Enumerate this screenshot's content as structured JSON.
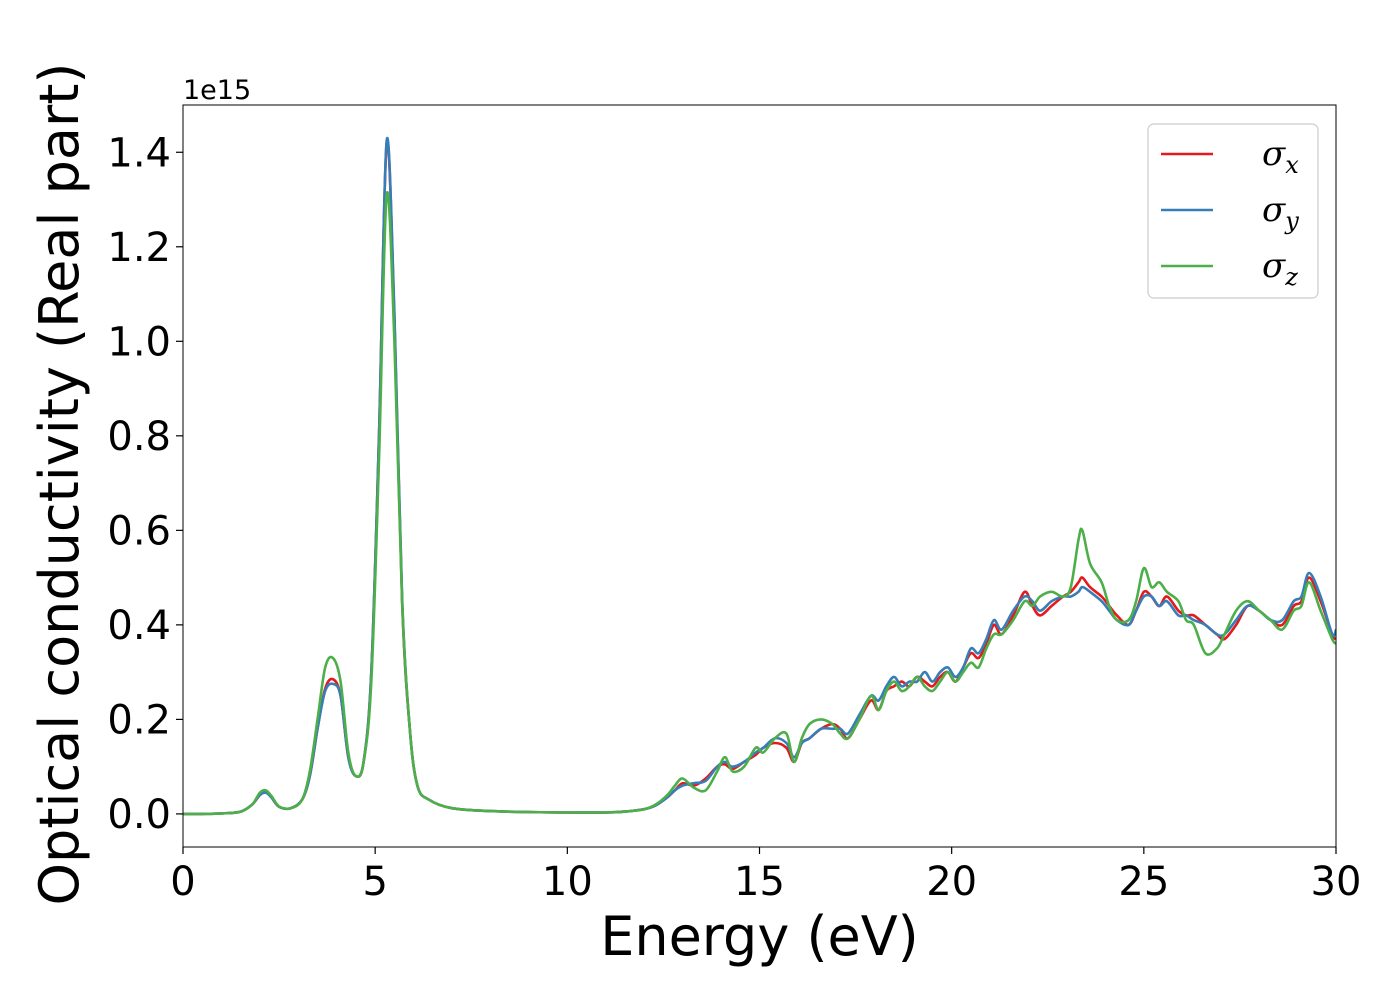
{
  "chart_data": {
    "type": "line",
    "xlabel": "Energy (eV)",
    "ylabel": "Optical conductivity (Real part)",
    "y_offset_label": "1e15",
    "y_scale": 1000000000000000.0,
    "xlim": [
      0,
      30
    ],
    "ylim": [
      -0.07,
      1.5
    ],
    "xticks": [
      0,
      5,
      10,
      15,
      20,
      25,
      30
    ],
    "xtick_labels": [
      "0",
      "5",
      "10",
      "15",
      "20",
      "25",
      "30"
    ],
    "yticks": [
      0.0,
      0.2,
      0.4,
      0.6,
      0.8,
      1.0,
      1.2,
      1.4
    ],
    "ytick_labels": [
      "0.0",
      "0.2",
      "0.4",
      "0.6",
      "0.8",
      "1.0",
      "1.2",
      "1.4"
    ],
    "grid": false,
    "legend_position": "top-right",
    "x": [
      0,
      0.5,
      1,
      1.5,
      1.8,
      2.0,
      2.15,
      2.3,
      2.5,
      2.8,
      3.1,
      3.3,
      3.5,
      3.7,
      3.9,
      4.1,
      4.3,
      4.5,
      4.7,
      4.9,
      5.1,
      5.3,
      5.5,
      5.7,
      5.9,
      6.1,
      6.4,
      7,
      8,
      9,
      10,
      11,
      11.5,
      12,
      12.3,
      12.6,
      12.8,
      13.0,
      13.3,
      13.6,
      13.9,
      14.1,
      14.3,
      14.6,
      14.9,
      15.1,
      15.4,
      15.7,
      15.9,
      16.1,
      16.3,
      16.6,
      16.9,
      17.1,
      17.3,
      17.6,
      17.9,
      18.1,
      18.3,
      18.5,
      18.7,
      18.9,
      19.1,
      19.3,
      19.5,
      19.7,
      19.9,
      20.1,
      20.3,
      20.5,
      20.7,
      20.9,
      21.1,
      21.3,
      21.6,
      21.9,
      22.1,
      22.3,
      22.6,
      22.9,
      23.1,
      23.3,
      23.4,
      23.6,
      23.9,
      24.1,
      24.3,
      24.6,
      24.8,
      25.0,
      25.2,
      25.4,
      25.6,
      25.9,
      26.1,
      26.3,
      26.6,
      26.9,
      27.1,
      27.4,
      27.7,
      28.0,
      28.3,
      28.6,
      28.9,
      29.1,
      29.3,
      29.6,
      29.9,
      30.0
    ],
    "series": [
      {
        "name": "σx",
        "label_main": "σ",
        "label_sub": "x",
        "color": "#e41a1c",
        "values": [
          0,
          0,
          0.001,
          0.005,
          0.02,
          0.04,
          0.046,
          0.035,
          0.015,
          0.012,
          0.03,
          0.08,
          0.18,
          0.265,
          0.285,
          0.25,
          0.12,
          0.08,
          0.11,
          0.3,
          0.8,
          1.42,
          1.05,
          0.45,
          0.18,
          0.06,
          0.03,
          0.012,
          0.006,
          0.004,
          0.003,
          0.003,
          0.005,
          0.01,
          0.018,
          0.035,
          0.05,
          0.065,
          0.06,
          0.075,
          0.1,
          0.105,
          0.095,
          0.11,
          0.125,
          0.14,
          0.15,
          0.14,
          0.11,
          0.15,
          0.16,
          0.18,
          0.19,
          0.18,
          0.16,
          0.2,
          0.24,
          0.22,
          0.26,
          0.27,
          0.28,
          0.27,
          0.29,
          0.28,
          0.27,
          0.29,
          0.3,
          0.28,
          0.31,
          0.34,
          0.33,
          0.36,
          0.4,
          0.38,
          0.42,
          0.47,
          0.44,
          0.42,
          0.44,
          0.46,
          0.47,
          0.49,
          0.5,
          0.48,
          0.46,
          0.44,
          0.42,
          0.4,
          0.43,
          0.47,
          0.46,
          0.44,
          0.46,
          0.43,
          0.42,
          0.42,
          0.4,
          0.38,
          0.37,
          0.4,
          0.44,
          0.43,
          0.41,
          0.4,
          0.44,
          0.45,
          0.5,
          0.45,
          0.38,
          0.37
        ]
      },
      {
        "name": "σy",
        "label_main": "σ",
        "label_sub": "y",
        "color": "#377eb8",
        "values": [
          0,
          0,
          0.001,
          0.005,
          0.02,
          0.04,
          0.045,
          0.035,
          0.015,
          0.012,
          0.03,
          0.08,
          0.18,
          0.26,
          0.275,
          0.25,
          0.12,
          0.08,
          0.11,
          0.3,
          0.8,
          1.425,
          1.06,
          0.46,
          0.18,
          0.06,
          0.03,
          0.012,
          0.006,
          0.004,
          0.003,
          0.003,
          0.005,
          0.01,
          0.018,
          0.035,
          0.05,
          0.06,
          0.065,
          0.07,
          0.1,
          0.11,
          0.1,
          0.11,
          0.13,
          0.14,
          0.16,
          0.15,
          0.12,
          0.15,
          0.16,
          0.18,
          0.18,
          0.18,
          0.17,
          0.21,
          0.25,
          0.24,
          0.27,
          0.29,
          0.27,
          0.28,
          0.28,
          0.3,
          0.28,
          0.3,
          0.31,
          0.29,
          0.31,
          0.35,
          0.34,
          0.37,
          0.41,
          0.39,
          0.43,
          0.46,
          0.45,
          0.43,
          0.45,
          0.46,
          0.46,
          0.47,
          0.48,
          0.47,
          0.45,
          0.43,
          0.41,
          0.4,
          0.43,
          0.46,
          0.46,
          0.44,
          0.45,
          0.42,
          0.42,
          0.41,
          0.4,
          0.38,
          0.38,
          0.41,
          0.44,
          0.43,
          0.41,
          0.41,
          0.45,
          0.46,
          0.51,
          0.46,
          0.38,
          0.39
        ]
      },
      {
        "name": "σz",
        "label_main": "σ",
        "label_sub": "z",
        "color": "#4daf4a",
        "values": [
          0,
          0,
          0.001,
          0.005,
          0.02,
          0.045,
          0.05,
          0.038,
          0.016,
          0.012,
          0.03,
          0.09,
          0.2,
          0.31,
          0.33,
          0.28,
          0.13,
          0.08,
          0.11,
          0.28,
          0.75,
          1.31,
          1.0,
          0.45,
          0.18,
          0.06,
          0.03,
          0.012,
          0.006,
          0.004,
          0.003,
          0.003,
          0.005,
          0.01,
          0.02,
          0.04,
          0.06,
          0.075,
          0.055,
          0.05,
          0.09,
          0.12,
          0.09,
          0.1,
          0.14,
          0.13,
          0.16,
          0.17,
          0.11,
          0.16,
          0.19,
          0.2,
          0.19,
          0.17,
          0.16,
          0.2,
          0.25,
          0.22,
          0.26,
          0.28,
          0.26,
          0.27,
          0.29,
          0.27,
          0.26,
          0.28,
          0.3,
          0.28,
          0.3,
          0.32,
          0.31,
          0.35,
          0.38,
          0.38,
          0.41,
          0.45,
          0.44,
          0.46,
          0.47,
          0.46,
          0.48,
          0.58,
          0.6,
          0.53,
          0.49,
          0.44,
          0.41,
          0.41,
          0.45,
          0.52,
          0.48,
          0.49,
          0.47,
          0.45,
          0.41,
          0.4,
          0.34,
          0.35,
          0.38,
          0.43,
          0.45,
          0.43,
          0.41,
          0.39,
          0.43,
          0.44,
          0.49,
          0.43,
          0.37,
          0.36
        ]
      }
    ]
  }
}
